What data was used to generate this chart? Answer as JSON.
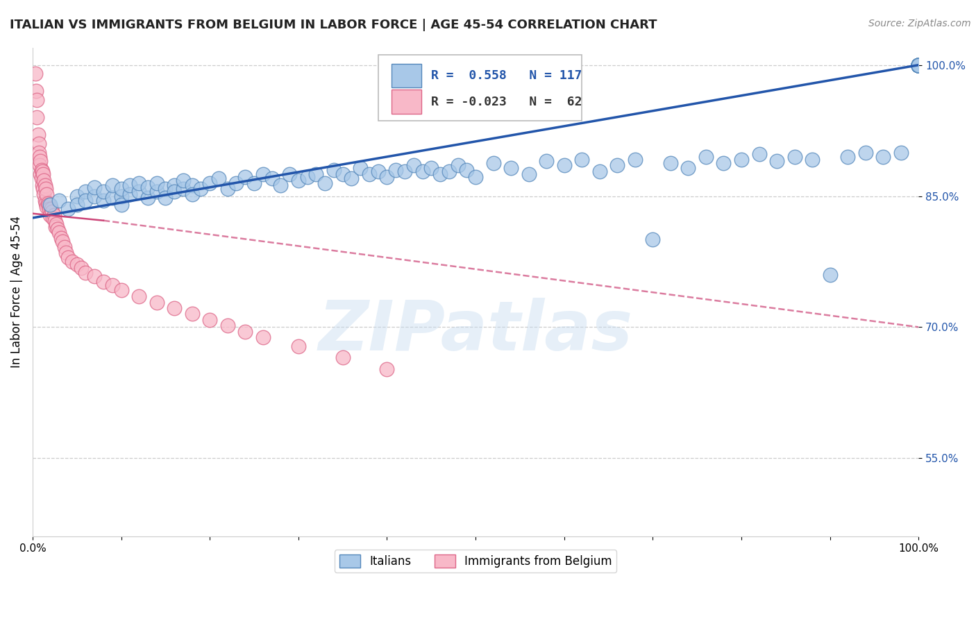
{
  "title": "ITALIAN VS IMMIGRANTS FROM BELGIUM IN LABOR FORCE | AGE 45-54 CORRELATION CHART",
  "source": "Source: ZipAtlas.com",
  "ylabel": "In Labor Force | Age 45-54",
  "xlim": [
    0.0,
    1.0
  ],
  "ylim": [
    0.46,
    1.02
  ],
  "yticks": [
    0.55,
    0.7,
    0.85,
    1.0
  ],
  "ytick_labels": [
    "55.0%",
    "70.0%",
    "85.0%",
    "100.0%"
  ],
  "xticks": [
    0.0,
    0.1,
    0.2,
    0.3,
    0.4,
    0.5,
    0.6,
    0.7,
    0.8,
    0.9,
    1.0
  ],
  "xtick_labels": [
    "0.0%",
    "",
    "",
    "",
    "",
    "",
    "",
    "",
    "",
    "",
    "100.0%"
  ],
  "blue_R": 0.558,
  "blue_N": 117,
  "pink_R": -0.023,
  "pink_N": 62,
  "blue_color": "#a8c8e8",
  "blue_edge_color": "#5588bb",
  "blue_line_color": "#2255aa",
  "pink_color": "#f8b8c8",
  "pink_edge_color": "#dd6688",
  "pink_line_color": "#cc4477",
  "legend_blue_label": "Italians",
  "legend_pink_label": "Immigrants from Belgium",
  "watermark": "ZIPatlas",
  "background_color": "#ffffff",
  "grid_color": "#cccccc",
  "title_fontsize": 13,
  "axis_label_fontsize": 12,
  "tick_fontsize": 11,
  "blue_scatter_x": [
    0.02,
    0.03,
    0.04,
    0.05,
    0.05,
    0.06,
    0.06,
    0.07,
    0.07,
    0.08,
    0.08,
    0.09,
    0.09,
    0.1,
    0.1,
    0.1,
    0.11,
    0.11,
    0.12,
    0.12,
    0.13,
    0.13,
    0.14,
    0.14,
    0.15,
    0.15,
    0.16,
    0.16,
    0.17,
    0.17,
    0.18,
    0.18,
    0.19,
    0.2,
    0.21,
    0.22,
    0.23,
    0.24,
    0.25,
    0.26,
    0.27,
    0.28,
    0.29,
    0.3,
    0.31,
    0.32,
    0.33,
    0.34,
    0.35,
    0.36,
    0.37,
    0.38,
    0.39,
    0.4,
    0.41,
    0.42,
    0.43,
    0.44,
    0.45,
    0.46,
    0.47,
    0.48,
    0.49,
    0.5,
    0.52,
    0.54,
    0.56,
    0.58,
    0.6,
    0.62,
    0.64,
    0.66,
    0.68,
    0.7,
    0.72,
    0.74,
    0.76,
    0.78,
    0.8,
    0.82,
    0.84,
    0.86,
    0.88,
    0.9,
    0.92,
    0.94,
    0.96,
    0.98,
    1.0,
    1.0,
    1.0,
    1.0,
    1.0,
    1.0,
    1.0,
    1.0,
    1.0,
    1.0,
    1.0,
    1.0,
    1.0,
    1.0,
    1.0,
    1.0,
    1.0,
    1.0,
    1.0,
    1.0,
    1.0,
    1.0,
    1.0,
    1.0,
    1.0,
    1.0,
    1.0,
    1.0,
    1.0,
    1.0,
    1.0,
    1.0,
    1.0
  ],
  "blue_scatter_y": [
    0.84,
    0.845,
    0.835,
    0.85,
    0.84,
    0.855,
    0.845,
    0.85,
    0.86,
    0.845,
    0.855,
    0.848,
    0.862,
    0.85,
    0.84,
    0.858,
    0.852,
    0.862,
    0.855,
    0.865,
    0.848,
    0.86,
    0.855,
    0.865,
    0.858,
    0.848,
    0.862,
    0.855,
    0.858,
    0.868,
    0.862,
    0.852,
    0.858,
    0.865,
    0.87,
    0.858,
    0.865,
    0.872,
    0.865,
    0.875,
    0.87,
    0.862,
    0.875,
    0.868,
    0.872,
    0.875,
    0.865,
    0.88,
    0.875,
    0.87,
    0.882,
    0.875,
    0.878,
    0.872,
    0.88,
    0.878,
    0.885,
    0.878,
    0.882,
    0.875,
    0.878,
    0.885,
    0.88,
    0.872,
    0.888,
    0.882,
    0.875,
    0.89,
    0.885,
    0.892,
    0.878,
    0.885,
    0.892,
    0.8,
    0.888,
    0.882,
    0.895,
    0.888,
    0.892,
    0.898,
    0.89,
    0.895,
    0.892,
    0.76,
    0.895,
    0.9,
    0.895,
    0.9,
    1.0,
    1.0,
    1.0,
    1.0,
    1.0,
    1.0,
    1.0,
    1.0,
    1.0,
    1.0,
    1.0,
    1.0,
    1.0,
    1.0,
    1.0,
    1.0,
    1.0,
    1.0,
    1.0,
    1.0,
    1.0,
    1.0,
    1.0,
    1.0,
    1.0,
    1.0,
    1.0,
    1.0,
    1.0,
    1.0,
    1.0,
    1.0,
    1.0
  ],
  "pink_scatter_x": [
    0.003,
    0.004,
    0.005,
    0.005,
    0.006,
    0.007,
    0.007,
    0.008,
    0.008,
    0.009,
    0.009,
    0.01,
    0.01,
    0.011,
    0.011,
    0.012,
    0.012,
    0.013,
    0.013,
    0.014,
    0.014,
    0.015,
    0.015,
    0.016,
    0.016,
    0.017,
    0.018,
    0.019,
    0.02,
    0.021,
    0.022,
    0.023,
    0.024,
    0.025,
    0.026,
    0.027,
    0.028,
    0.03,
    0.032,
    0.034,
    0.036,
    0.038,
    0.04,
    0.045,
    0.05,
    0.055,
    0.06,
    0.07,
    0.08,
    0.09,
    0.1,
    0.12,
    0.14,
    0.16,
    0.18,
    0.2,
    0.22,
    0.24,
    0.26,
    0.3,
    0.35,
    0.4
  ],
  "pink_scatter_y": [
    0.99,
    0.97,
    0.96,
    0.94,
    0.92,
    0.91,
    0.9,
    0.895,
    0.885,
    0.875,
    0.89,
    0.88,
    0.87,
    0.878,
    0.862,
    0.875,
    0.858,
    0.868,
    0.852,
    0.862,
    0.845,
    0.858,
    0.842,
    0.852,
    0.838,
    0.842,
    0.84,
    0.835,
    0.828,
    0.835,
    0.832,
    0.825,
    0.828,
    0.822,
    0.815,
    0.818,
    0.812,
    0.808,
    0.802,
    0.798,
    0.792,
    0.785,
    0.78,
    0.775,
    0.772,
    0.768,
    0.762,
    0.758,
    0.752,
    0.748,
    0.742,
    0.735,
    0.728,
    0.722,
    0.715,
    0.708,
    0.702,
    0.695,
    0.688,
    0.678,
    0.665,
    0.652
  ],
  "pink_trendline_x": [
    0.0,
    0.5
  ],
  "pink_trendline_y": [
    0.83,
    0.72
  ],
  "blue_trendline_x": [
    0.0,
    1.0
  ],
  "blue_trendline_y": [
    0.825,
    1.0
  ]
}
